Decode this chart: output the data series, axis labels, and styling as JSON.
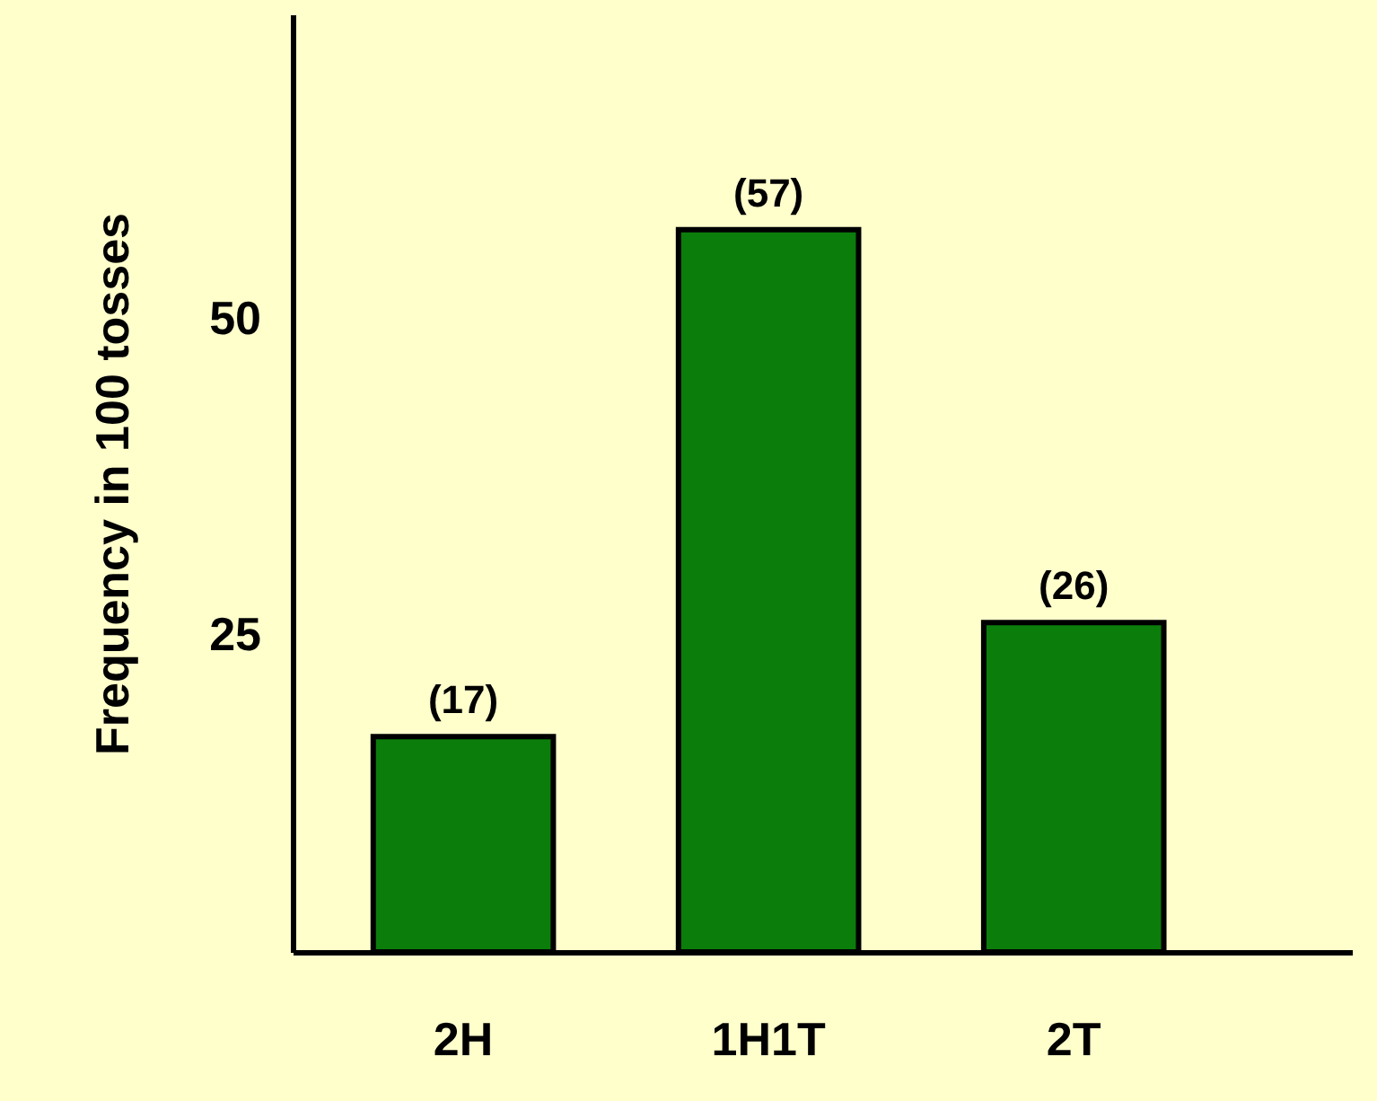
{
  "chart_data": {
    "type": "bar",
    "ylabel": "Frequency in 100 tosses",
    "categories": [
      "2H",
      "1H1T",
      "2T"
    ],
    "values": [
      17,
      57,
      26
    ],
    "value_labels": [
      "(17)",
      "(57)",
      "(26)"
    ],
    "color": "#0b7d0b",
    "ylim": [
      0,
      74
    ],
    "yticks": [
      25,
      50
    ]
  }
}
